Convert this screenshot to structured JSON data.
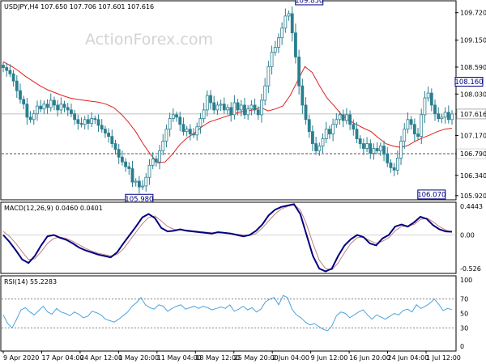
{
  "header": {
    "price_title": "USDJPY,H4  107.650 107.706 107.601 107.616",
    "macd_title": "MACD(12,26,9) 0.0460 0.0401",
    "rsi_title": "RSI(14) 55.2283"
  },
  "watermark": "ActionForex.com",
  "colors": {
    "candle": "#2a7f8f",
    "ma": "#e02020",
    "macd": "#000080",
    "signal": "#c08080",
    "rsi": "#4aa3df",
    "box": "#000080",
    "grid_dash": "#555555"
  },
  "chart_data": [
    {
      "type": "candlestick",
      "title": "USDJPY,H4",
      "ohlc_header": {
        "open": 107.65,
        "high": 107.706,
        "low": 107.601,
        "close": 107.616
      },
      "ylim": [
        105.85,
        109.95
      ],
      "y_ticks": [
        "109.720",
        "109.150",
        "108.590",
        "108.030",
        "107.616",
        "107.170",
        "106.790",
        "106.340",
        "105.920"
      ],
      "y_tick_values": [
        109.72,
        109.15,
        108.59,
        108.03,
        107.616,
        107.17,
        106.79,
        106.34,
        105.92
      ],
      "current_price": 107.616,
      "horizontal_levels": [
        106.79
      ],
      "annotations": [
        {
          "label": "105.980",
          "x": 40,
          "y": 105.98
        },
        {
          "label": "109.850",
          "x": 90,
          "y": 109.85
        },
        {
          "label": "106.070",
          "x": 126,
          "y": 106.07
        },
        {
          "label": "108.160",
          "x": 137,
          "y": 108.16
        }
      ],
      "x_labels": [
        "9 Apr 2020",
        "17 Apr 04:00",
        "24 Apr 12:00",
        "1 May 20:00",
        "11 May 04:00",
        "18 May 12:00",
        "25 May 20:00",
        "2 Jun 04:00",
        "9 Jun 12:00",
        "16 Jun 20:00",
        "24 Jun 04:00",
        "1 Jul 12:00"
      ],
      "close": [
        108.58,
        108.52,
        108.45,
        108.3,
        108.1,
        107.92,
        107.82,
        107.55,
        107.5,
        107.62,
        107.78,
        107.72,
        107.82,
        107.75,
        107.9,
        107.8,
        107.7,
        107.82,
        107.75,
        107.7,
        107.62,
        107.5,
        107.42,
        107.4,
        107.5,
        107.42,
        107.52,
        107.5,
        107.38,
        107.3,
        107.22,
        107.15,
        107.0,
        106.88,
        106.72,
        106.62,
        106.52,
        106.48,
        106.2,
        106.22,
        106.1,
        106.12,
        106.3,
        106.55,
        106.68,
        106.62,
        106.85,
        107.05,
        107.3,
        107.52,
        107.6,
        107.55,
        107.4,
        107.25,
        107.3,
        107.2,
        107.18,
        107.35,
        107.52,
        107.7,
        108.0,
        107.85,
        107.7,
        107.8,
        107.82,
        107.7,
        107.75,
        107.6,
        107.85,
        107.7,
        107.8,
        107.6,
        107.72,
        107.8,
        107.7,
        107.6,
        107.9,
        108.2,
        108.6,
        108.9,
        109.0,
        109.2,
        109.4,
        109.65,
        109.7,
        109.3,
        108.8,
        108.2,
        107.8,
        107.5,
        107.25,
        107.0,
        106.85,
        106.95,
        107.1,
        107.3,
        107.2,
        107.4,
        107.5,
        107.6,
        107.48,
        107.6,
        107.4,
        107.3,
        107.1,
        107.0,
        106.9,
        107.0,
        106.8,
        106.9,
        106.85,
        106.95,
        106.78,
        106.6,
        106.5,
        106.45,
        106.7,
        107.05,
        107.3,
        107.5,
        107.4,
        107.2,
        107.15,
        107.6,
        107.95,
        108.05,
        107.8,
        107.62,
        107.52,
        107.55,
        107.65,
        107.5,
        107.616
      ],
      "ma": [
        108.7,
        108.62,
        108.52,
        108.4,
        108.3,
        108.2,
        108.12,
        108.06,
        108.0,
        107.95,
        107.92,
        107.9,
        107.88,
        107.86,
        107.82,
        107.75,
        107.62,
        107.45,
        107.25,
        107.0,
        106.78,
        106.6,
        106.62,
        106.78,
        106.98,
        107.12,
        107.22,
        107.35,
        107.45,
        107.5,
        107.55,
        107.6,
        107.65,
        107.68,
        107.7,
        107.75,
        107.68,
        107.72,
        107.78,
        108.0,
        108.3,
        108.6,
        108.48,
        108.2,
        107.95,
        107.78,
        107.6,
        107.48,
        107.4,
        107.32,
        107.25,
        107.12,
        107.0,
        106.95,
        106.92,
        106.96,
        107.05,
        107.12,
        107.18,
        107.25,
        107.3,
        107.32
      ],
      "macd_ylim": [
        -0.526,
        0.4443
      ],
      "macd_y_ticks": [
        "0.4443",
        "0.00",
        "-0.526"
      ],
      "macd": [
        0.0,
        -0.1,
        -0.22,
        -0.35,
        -0.4,
        -0.3,
        -0.15,
        -0.02,
        0.0,
        -0.04,
        -0.07,
        -0.12,
        -0.18,
        -0.22,
        -0.25,
        -0.28,
        -0.3,
        -0.32,
        -0.25,
        -0.12,
        0.0,
        0.12,
        0.25,
        0.3,
        0.24,
        0.1,
        0.05,
        0.06,
        0.08,
        0.06,
        0.05,
        0.04,
        0.03,
        0.02,
        0.04,
        0.03,
        0.02,
        0.0,
        -0.02,
        0.0,
        0.06,
        0.15,
        0.28,
        0.36,
        0.4,
        0.42,
        0.44,
        0.3,
        0.0,
        -0.3,
        -0.48,
        -0.52,
        -0.48,
        -0.3,
        -0.15,
        -0.06,
        0.0,
        -0.03,
        -0.12,
        -0.15,
        -0.05,
        0.0,
        0.12,
        0.15,
        0.12,
        0.18,
        0.26,
        0.23,
        0.14,
        0.08,
        0.05,
        0.046
      ],
      "signal": [
        0.05,
        -0.02,
        -0.12,
        -0.24,
        -0.35,
        -0.34,
        -0.24,
        -0.12,
        -0.05,
        -0.03,
        -0.05,
        -0.09,
        -0.14,
        -0.19,
        -0.23,
        -0.26,
        -0.28,
        -0.3,
        -0.28,
        -0.2,
        -0.08,
        0.04,
        0.16,
        0.25,
        0.27,
        0.2,
        0.12,
        0.08,
        0.07,
        0.07,
        0.06,
        0.05,
        0.04,
        0.03,
        0.03,
        0.03,
        0.02,
        0.01,
        0.0,
        -0.01,
        0.02,
        0.1,
        0.2,
        0.3,
        0.37,
        0.41,
        0.43,
        0.36,
        0.15,
        -0.12,
        -0.36,
        -0.48,
        -0.5,
        -0.4,
        -0.25,
        -0.12,
        -0.04,
        -0.03,
        -0.08,
        -0.12,
        -0.09,
        -0.04,
        0.06,
        0.12,
        0.13,
        0.15,
        0.22,
        0.24,
        0.19,
        0.12,
        0.07,
        0.0401
      ],
      "rsi_ylim": [
        0,
        100
      ],
      "rsi_y_ticks": [
        "100",
        "70",
        "50",
        "30",
        "0"
      ],
      "rsi_levels": [
        70,
        30
      ],
      "rsi": [
        48,
        36,
        30,
        42,
        55,
        58,
        52,
        48,
        54,
        60,
        52,
        49,
        57,
        52,
        50,
        47,
        52,
        49,
        44,
        46,
        53,
        51,
        48,
        42,
        40,
        38,
        42,
        47,
        52,
        60,
        65,
        72,
        62,
        58,
        56,
        62,
        60,
        53,
        57,
        60,
        62,
        56,
        58,
        60,
        57,
        60,
        58,
        55,
        57,
        59,
        57,
        62,
        53,
        56,
        60,
        55,
        58,
        52,
        56,
        66,
        70,
        72,
        62,
        75,
        72,
        56,
        48,
        44,
        38,
        34,
        36,
        32,
        28,
        26,
        33,
        47,
        52,
        50,
        44,
        48,
        52,
        55,
        48,
        42,
        48,
        45,
        42,
        46,
        50,
        48,
        54,
        56,
        52,
        62,
        57,
        60,
        64,
        70,
        63,
        54,
        57,
        55.2283
      ]
    }
  ]
}
